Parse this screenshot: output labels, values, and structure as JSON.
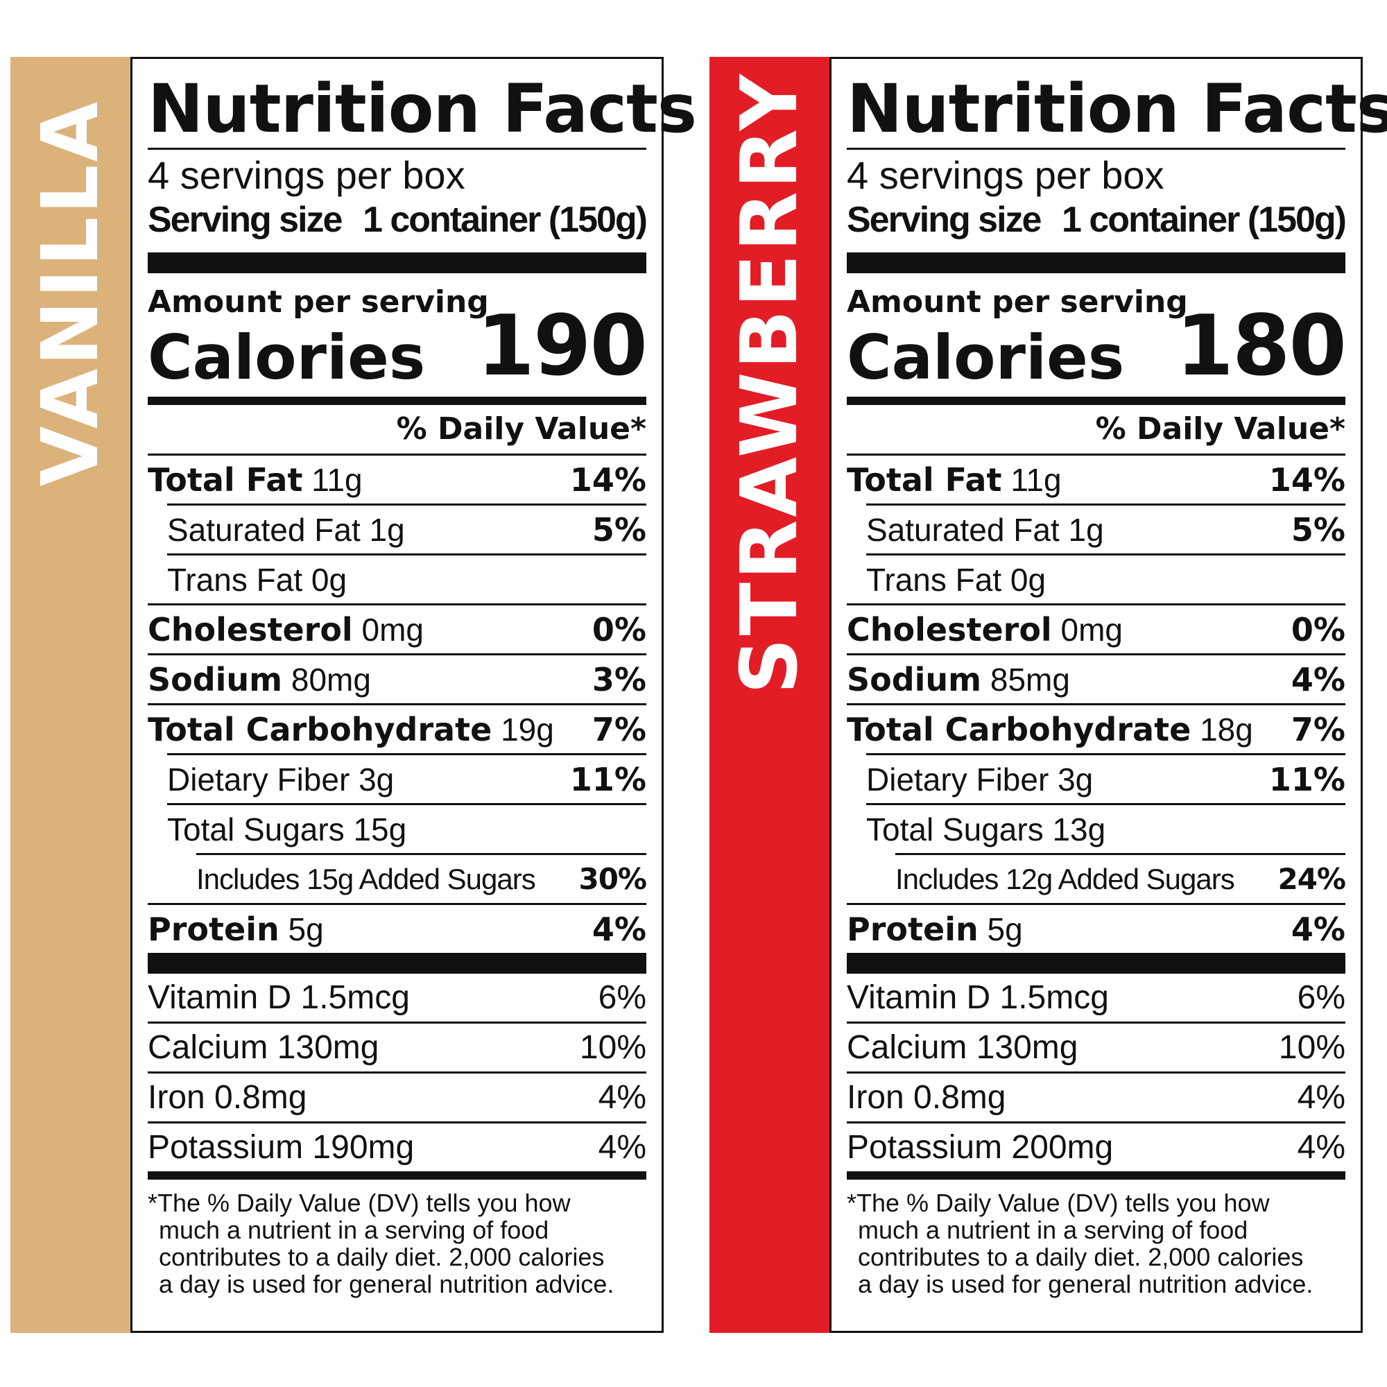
{
  "colors": {
    "vanilla_tab": "#dcb27b",
    "strawberry_tab": "#e31d25",
    "ink": "#111111"
  },
  "panels": [
    {
      "flavor": "VANILLA",
      "title": "Nutrition Facts",
      "servings_per_container": "4 servings per box",
      "serving_size_label": "Serving size",
      "serving_size_value": "1 container (150g)",
      "amount_per_serving": "Amount per serving",
      "calories_label": "Calories",
      "calories_value": "190",
      "dv_header": "% Daily Value*",
      "total_fat": {
        "label": "Total Fat",
        "amount": "11g",
        "dv": "14%"
      },
      "saturated_fat": {
        "label": "Saturated Fat 1g",
        "dv": "5%"
      },
      "trans_fat": {
        "label": "Trans Fat 0g"
      },
      "cholesterol": {
        "label": "Cholesterol",
        "amount": "0mg",
        "dv": "0%"
      },
      "sodium": {
        "label": "Sodium",
        "amount": "80mg",
        "dv": "3%"
      },
      "total_carb": {
        "label": "Total Carbohydrate",
        "amount": "19g",
        "dv": "7%"
      },
      "dietary_fiber": {
        "label": "Dietary Fiber 3g",
        "dv": "11%"
      },
      "total_sugars": {
        "label": "Total Sugars 15g"
      },
      "added_sugars": {
        "label": "Includes 15g Added Sugars",
        "dv": "30%"
      },
      "protein": {
        "label": "Protein",
        "amount": "5g",
        "dv": "4%"
      },
      "vitamins": [
        {
          "label": "Vitamin D 1.5mcg",
          "dv": "6%"
        },
        {
          "label": "Calcium 130mg",
          "dv": "10%"
        },
        {
          "label": "Iron 0.8mg",
          "dv": "4%"
        },
        {
          "label": "Potassium 190mg",
          "dv": "4%"
        }
      ],
      "footnote": [
        "*The % Daily Value (DV) tells you how",
        "much a nutrient in a serving of food",
        "contributes to a daily diet. 2,000 calories",
        "a day is used for general nutrition advice."
      ]
    },
    {
      "flavor": "STRAWBERRY",
      "title": "Nutrition Facts",
      "servings_per_container": "4 servings per box",
      "serving_size_label": "Serving size",
      "serving_size_value": "1 container (150g)",
      "amount_per_serving": "Amount per serving",
      "calories_label": "Calories",
      "calories_value": "180",
      "dv_header": "% Daily Value*",
      "total_fat": {
        "label": "Total Fat",
        "amount": "11g",
        "dv": "14%"
      },
      "saturated_fat": {
        "label": "Saturated Fat 1g",
        "dv": "5%"
      },
      "trans_fat": {
        "label": "Trans Fat 0g"
      },
      "cholesterol": {
        "label": "Cholesterol",
        "amount": "0mg",
        "dv": "0%"
      },
      "sodium": {
        "label": "Sodium",
        "amount": "85mg",
        "dv": "4%"
      },
      "total_carb": {
        "label": "Total Carbohydrate",
        "amount": "18g",
        "dv": "7%"
      },
      "dietary_fiber": {
        "label": "Dietary Fiber 3g",
        "dv": "11%"
      },
      "total_sugars": {
        "label": "Total Sugars 13g"
      },
      "added_sugars": {
        "label": "Includes 12g Added Sugars",
        "dv": "24%"
      },
      "protein": {
        "label": "Protein",
        "amount": "5g",
        "dv": "4%"
      },
      "vitamins": [
        {
          "label": "Vitamin D 1.5mcg",
          "dv": "6%"
        },
        {
          "label": "Calcium 130mg",
          "dv": "10%"
        },
        {
          "label": "Iron 0.8mg",
          "dv": "4%"
        },
        {
          "label": "Potassium 200mg",
          "dv": "4%"
        }
      ],
      "footnote": [
        "*The % Daily Value (DV) tells you how",
        "much a nutrient in a serving of food",
        "contributes to a daily diet. 2,000 calories",
        "a day is used for general nutrition advice."
      ]
    }
  ]
}
